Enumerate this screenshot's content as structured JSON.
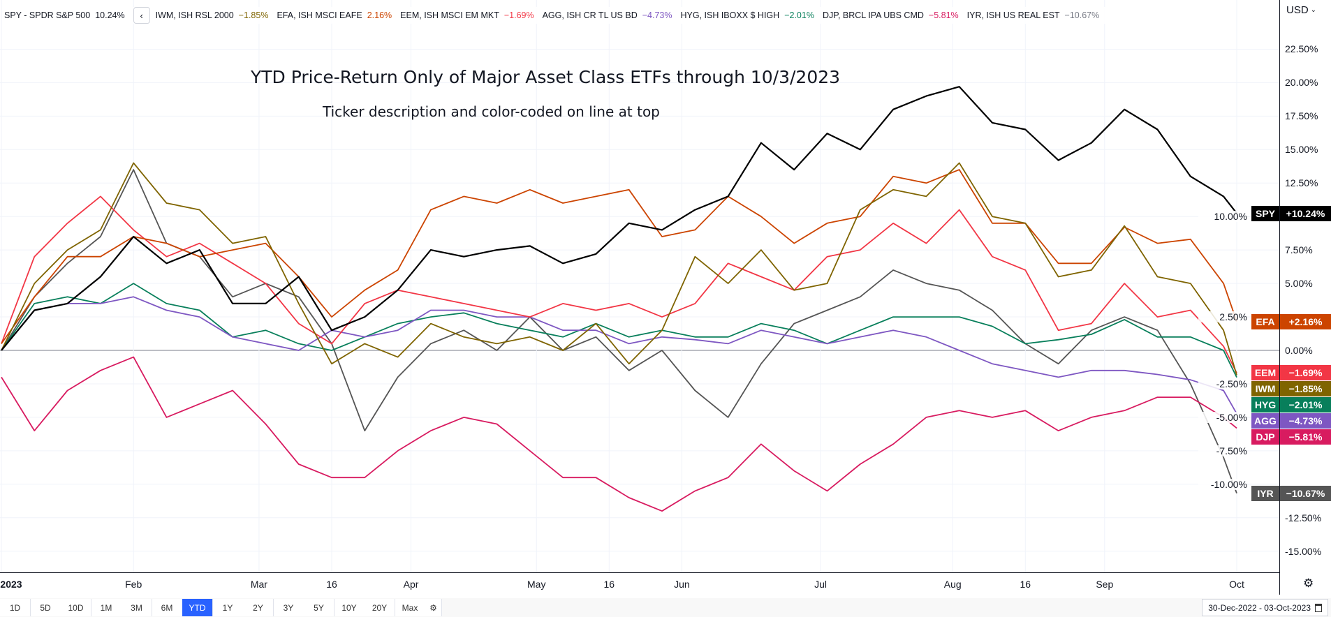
{
  "chart_data": {
    "type": "line",
    "title": "YTD Price-Return Only of Major Asset Class ETFs  through 10/3/2023",
    "subtitle": "Ticker description and color-coded on line at top",
    "xlabel": "",
    "ylabel": "",
    "ylim": [
      -17,
      25
    ],
    "y_ticks": [
      22.5,
      20,
      17.5,
      15,
      12.5,
      10,
      7.5,
      5,
      2.5,
      0,
      -2.5,
      -5,
      -7.5,
      -10,
      -12.5,
      -15
    ],
    "y_tick_labels": [
      "22.50%",
      "20.00%",
      "17.50%",
      "15.00%",
      "12.50%",
      "10.00%",
      "7.50%",
      "5.00%",
      "2.50%",
      "0.00%",
      "-2.50%",
      "-5.00%",
      "-7.50%",
      "-10.00%",
      "-12.50%",
      "-15.00%"
    ],
    "x_unit": "trading days since 3-Jan-2023",
    "x_range": [
      0,
      187
    ],
    "x": [
      0,
      5,
      10,
      15,
      20,
      25,
      30,
      35,
      40,
      45,
      50,
      55,
      60,
      65,
      70,
      75,
      80,
      85,
      90,
      95,
      100,
      105,
      110,
      115,
      120,
      125,
      130,
      135,
      140,
      145,
      150,
      155,
      160,
      165,
      170,
      175,
      180,
      185,
      187
    ],
    "x_ticks": [
      {
        "label": "2023",
        "x": 0
      },
      {
        "label": "Feb",
        "x": 20
      },
      {
        "label": "Mar",
        "x": 39
      },
      {
        "label": "16",
        "x": 50
      },
      {
        "label": "Apr",
        "x": 62
      },
      {
        "label": "May",
        "x": 81
      },
      {
        "label": "16",
        "x": 92
      },
      {
        "label": "Jun",
        "x": 103
      },
      {
        "label": "Jul",
        "x": 124
      },
      {
        "label": "Aug",
        "x": 144
      },
      {
        "label": "16",
        "x": 155
      },
      {
        "label": "Sep",
        "x": 167
      },
      {
        "label": "Oct",
        "x": 187
      }
    ],
    "grid": true,
    "legend": "top-left",
    "series": [
      {
        "ticker": "SPY",
        "name": "SPY - SPDR S&P 500",
        "value_label": "10.24%",
        "tag_label": "+10.24%",
        "color": "#000000",
        "values": [
          0,
          3,
          3.5,
          5.5,
          8.5,
          6.5,
          7.5,
          3.5,
          3.5,
          5.5,
          1.5,
          2.5,
          4.5,
          7.5,
          7,
          7.5,
          7.8,
          6.5,
          7.2,
          9.5,
          9,
          10.5,
          11.5,
          15.5,
          13.5,
          16.2,
          15,
          18,
          19,
          19.7,
          17,
          16.5,
          14.2,
          15.5,
          18,
          16.5,
          13,
          11.5,
          10.24
        ]
      },
      {
        "ticker": "IWM",
        "name": "IWM, ISH RSL 2000",
        "value_label": "−1.85%",
        "tag_label": "−1.85%",
        "color": "#7f6400",
        "values": [
          0,
          5,
          7.5,
          9,
          14,
          11,
          10.5,
          8,
          8.5,
          3.5,
          -1,
          0.5,
          -0.5,
          2,
          1,
          0.5,
          1,
          0,
          2,
          -1,
          1.5,
          7,
          5,
          7.5,
          4.5,
          5,
          10.5,
          12,
          11.5,
          14,
          10,
          9.5,
          5.5,
          6,
          9.3,
          5.5,
          5,
          1.5,
          -1.85
        ]
      },
      {
        "ticker": "EFA",
        "name": "EFA, ISH MSCI EAFE",
        "value_label": "2.16%",
        "tag_label": "+2.16%",
        "color": "#cc4400",
        "values": [
          0.5,
          4,
          7,
          7,
          8.5,
          8,
          7,
          7.5,
          8,
          5.5,
          2.5,
          4.5,
          6,
          10.5,
          11.5,
          11,
          12,
          11,
          11.5,
          12,
          8.5,
          9,
          11.5,
          10,
          8,
          9.5,
          10,
          13,
          12.5,
          13.5,
          9.5,
          9.5,
          6.5,
          6.5,
          9.2,
          8,
          8.3,
          5,
          2.16
        ]
      },
      {
        "ticker": "EEM",
        "name": "EEM, ISH MSCI EM MKT",
        "value_label": "−1.69%",
        "tag_label": "−1.69%",
        "color": "#f23645",
        "values": [
          0.5,
          7,
          9.5,
          11.5,
          9,
          7,
          8,
          6.5,
          5,
          2,
          0.5,
          3.5,
          4.5,
          4,
          3.5,
          3,
          2.5,
          3.5,
          3,
          3.5,
          2.5,
          3.5,
          6.5,
          5.5,
          4.5,
          7,
          7.5,
          9.5,
          8,
          10.5,
          7,
          6,
          1.5,
          2,
          5,
          2.5,
          3,
          0.3,
          -1.69
        ]
      },
      {
        "ticker": "AGG",
        "name": "AGG, ISH CR TL US BD",
        "value_label": "−4.73%",
        "tag_label": "−4.73%",
        "color": "#7e57c2",
        "values": [
          0,
          3,
          3.5,
          3.5,
          4,
          3,
          2.5,
          1,
          0.5,
          0,
          1.5,
          1,
          1.5,
          3,
          3,
          2.5,
          2.5,
          1.5,
          1.5,
          0.5,
          1,
          0.8,
          0.5,
          1.5,
          1,
          0.5,
          1,
          1.5,
          1,
          0,
          -1,
          -1.5,
          -2,
          -1.5,
          -1.5,
          -1.8,
          -2.2,
          -3,
          -4.73
        ]
      },
      {
        "ticker": "HYG",
        "name": "HYG, ISH IBOXX $ HIGH",
        "value_label": "−2.01%",
        "tag_label": "−2.01%",
        "color": "#087f5b",
        "values": [
          0,
          3.5,
          4,
          3.5,
          5,
          3.5,
          3,
          1,
          1.5,
          0.5,
          0,
          1,
          2,
          2.5,
          2.8,
          2,
          1.5,
          1,
          2,
          1,
          1.5,
          1,
          1,
          2,
          1.5,
          0.5,
          1.5,
          2.5,
          2.5,
          2.5,
          1.8,
          0.5,
          0.8,
          1.2,
          2.3,
          1,
          1,
          0,
          -2.01
        ]
      },
      {
        "ticker": "DJP",
        "name": "DJP, BRCL IPA UBS CMD",
        "value_label": "−5.81%",
        "tag_label": "−5.81%",
        "color": "#d81b60",
        "values": [
          -2,
          -6,
          -3,
          -1.5,
          -0.5,
          -5,
          -4,
          -3,
          -5.5,
          -8.5,
          -9.5,
          -9.5,
          -7.5,
          -6,
          -5,
          -5.5,
          -7.5,
          -9.5,
          -9.5,
          -11,
          -12,
          -10.5,
          -9.5,
          -7,
          -9,
          -10.5,
          -8.5,
          -7,
          -5,
          -4.5,
          -5,
          -4.5,
          -6,
          -5,
          -4.5,
          -3.5,
          -3.5,
          -5,
          -5.81
        ]
      },
      {
        "ticker": "IYR",
        "name": "IYR, ISH US REAL EST",
        "value_label": "−10.67%",
        "tag_label": "−10.67%",
        "color": "#555555",
        "values": [
          0,
          4,
          6.5,
          8.5,
          13.5,
          8,
          7,
          4,
          5,
          4,
          0.5,
          -6,
          -2,
          0.5,
          1.5,
          0,
          2.5,
          0,
          1,
          -1.5,
          0,
          -3,
          -5,
          -1,
          2,
          3,
          4,
          6,
          5,
          4.5,
          3,
          0.5,
          -1,
          1.5,
          2.5,
          1.5,
          -2.5,
          -8,
          -10.67
        ]
      }
    ]
  },
  "axis": {
    "currency": "USD"
  },
  "toolbar": {
    "ranges": [
      "1D",
      "5D",
      "10D",
      "1M",
      "3M",
      "6M",
      "YTD",
      "1Y",
      "2Y",
      "3Y",
      "5Y",
      "10Y",
      "20Y",
      "Max"
    ],
    "active": "YTD",
    "date_range": "30-Dec-2022 - 03-Oct-2023"
  },
  "colors": {
    "accent": "#2962ff",
    "zero_line": "#9598a1",
    "grid": "#f0f3fa"
  }
}
